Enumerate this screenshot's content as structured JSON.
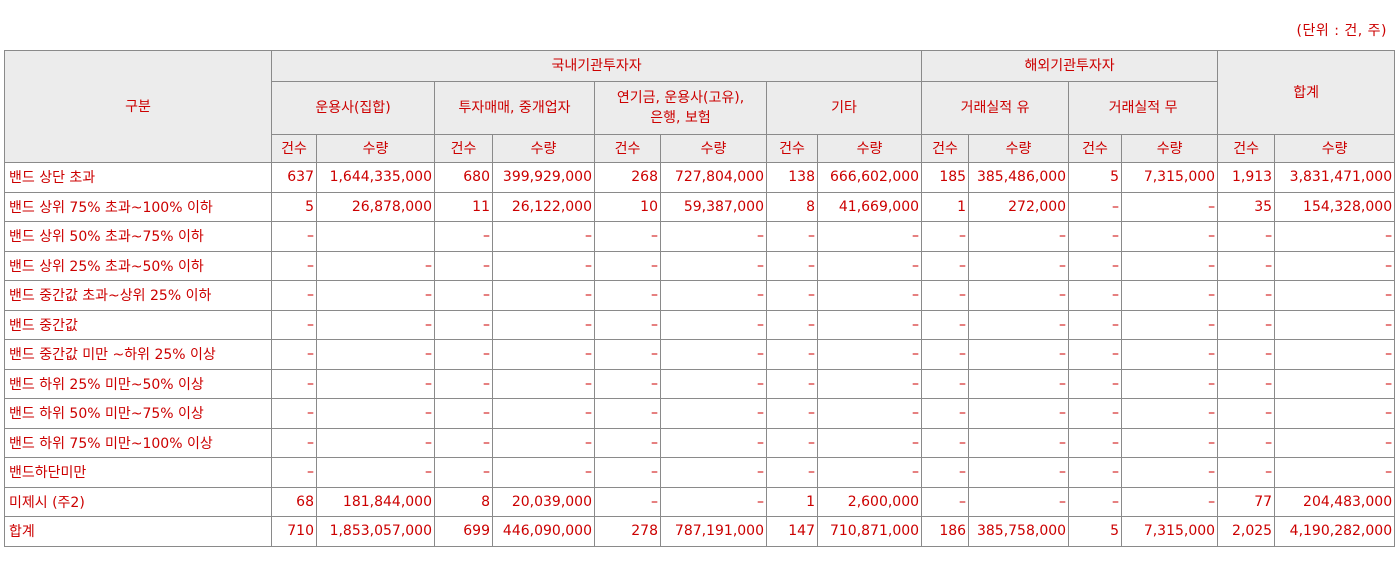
{
  "unit_note": "(단위 : 건, 주)",
  "headers": {
    "category": "구분",
    "domestic": "국내기관투자자",
    "foreign": "해외기관투자자",
    "total": "합계",
    "asset_manager": "운용사(집합)",
    "dealer": "투자매매, 중개업자",
    "pension_line1": "연기금, 운용사(고유),",
    "pension_line2": "은행, 보험",
    "other": "기타",
    "record_yes": "거래실적 유",
    "record_no": "거래실적 무",
    "count": "건수",
    "qty": "수량"
  },
  "rows": [
    {
      "label": "밴드 상단 초과",
      "cells": [
        "637",
        "1,644,335,000",
        "680",
        "399,929,000",
        "268",
        "727,804,000",
        "138",
        "666,602,000",
        "185",
        "385,486,000",
        "5",
        "7,315,000",
        "1,913",
        "3,831,471,000"
      ]
    },
    {
      "label": "밴드 상위 75% 초과~100% 이하",
      "cells": [
        "5",
        "26,878,000",
        "11",
        "26,122,000",
        "10",
        "59,387,000",
        "8",
        "41,669,000",
        "1",
        "272,000",
        "–",
        "–",
        "35",
        "154,328,000"
      ]
    },
    {
      "label": "밴드 상위 50% 초과~75% 이하",
      "cells": [
        "–",
        "",
        "–",
        "–",
        "–",
        "–",
        "–",
        "–",
        "–",
        "–",
        "–",
        "–",
        "–",
        "–"
      ]
    },
    {
      "label": "밴드 상위 25% 초과~50% 이하",
      "cells": [
        "–",
        "–",
        "–",
        "–",
        "–",
        "–",
        "–",
        "–",
        "–",
        "–",
        "–",
        "–",
        "–",
        "–"
      ]
    },
    {
      "label": "밴드 중간값 초과~상위 25% 이하",
      "cells": [
        "–",
        "–",
        "–",
        "–",
        "–",
        "–",
        "–",
        "–",
        "–",
        "–",
        "–",
        "–",
        "–",
        "–"
      ]
    },
    {
      "label": "밴드 중간값",
      "cells": [
        "–",
        "–",
        "–",
        "–",
        "–",
        "–",
        "–",
        "–",
        "–",
        "–",
        "–",
        "–",
        "–",
        "–"
      ]
    },
    {
      "label": "밴드 중간값 미만 ~하위 25% 이상",
      "cells": [
        "–",
        "–",
        "–",
        "–",
        "–",
        "–",
        "–",
        "–",
        "–",
        "–",
        "–",
        "–",
        "–",
        "–"
      ]
    },
    {
      "label": "밴드 하위 25% 미만~50% 이상",
      "cells": [
        "–",
        "–",
        "–",
        "–",
        "–",
        "–",
        "–",
        "–",
        "–",
        "–",
        "–",
        "–",
        "–",
        "–"
      ]
    },
    {
      "label": "밴드 하위 50% 미만~75% 이상",
      "cells": [
        "–",
        "–",
        "–",
        "–",
        "–",
        "–",
        "–",
        "–",
        "–",
        "–",
        "–",
        "–",
        "–",
        "–"
      ]
    },
    {
      "label": "밴드 하위 75% 미만~100% 이상",
      "cells": [
        "–",
        "–",
        "–",
        "–",
        "–",
        "–",
        "–",
        "–",
        "–",
        "–",
        "–",
        "–",
        "–",
        "–"
      ]
    },
    {
      "label": "밴드하단미만",
      "cells": [
        "–",
        "–",
        "–",
        "–",
        "–",
        "–",
        "–",
        "–",
        "–",
        "–",
        "–",
        "–",
        "–",
        "–"
      ]
    },
    {
      "label": "미제시 (주2)",
      "cells": [
        "68",
        "181,844,000",
        "8",
        "20,039,000",
        "–",
        "–",
        "1",
        "2,600,000",
        "–",
        "–",
        "–",
        "–",
        "77",
        "204,483,000"
      ]
    },
    {
      "label": "합계",
      "cells": [
        "710",
        "1,853,057,000",
        "699",
        "446,090,000",
        "278",
        "787,191,000",
        "147",
        "710,871,000",
        "186",
        "385,758,000",
        "5",
        "7,315,000",
        "2,025",
        "4,190,282,000"
      ]
    }
  ]
}
